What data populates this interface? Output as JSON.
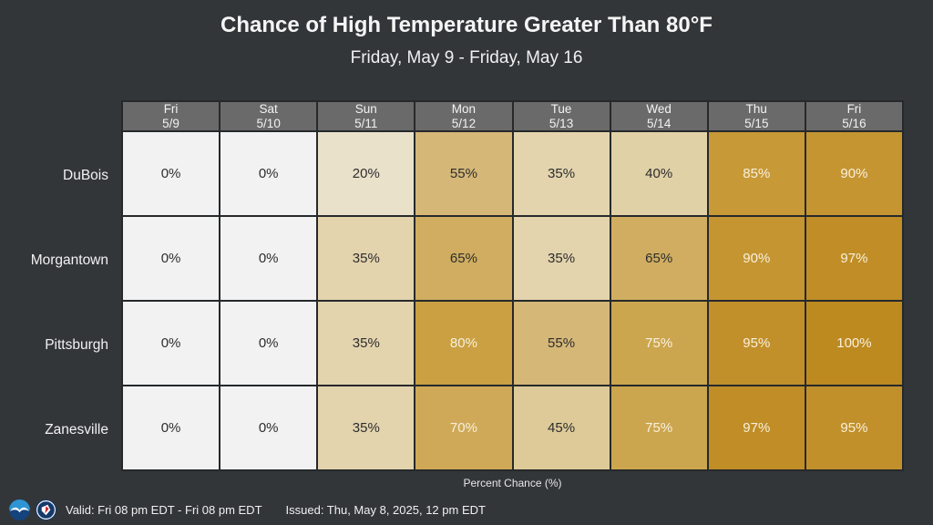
{
  "chart_data": {
    "type": "heatmap",
    "title": "Chance of High Temperature Greater Than 80°F",
    "subtitle": "Friday, May 9 - Friday, May 16",
    "columns": [
      "Fri 5/9",
      "Sat 5/10",
      "Sun 5/11",
      "Mon 5/12",
      "Tue 5/13",
      "Wed 5/14",
      "Thu 5/15",
      "Fri 5/16"
    ],
    "rows": [
      "DuBois",
      "Morgantown",
      "Pittsburgh",
      "Zanesville"
    ],
    "values_percent": [
      [
        0,
        0,
        20,
        55,
        35,
        40,
        85,
        90
      ],
      [
        0,
        0,
        35,
        65,
        35,
        65,
        90,
        97
      ],
      [
        0,
        0,
        35,
        80,
        55,
        75,
        95,
        100
      ],
      [
        0,
        0,
        35,
        70,
        45,
        75,
        97,
        95
      ]
    ],
    "value_suffix": "%",
    "unit_label": "Percent Chance (%)",
    "value_range": [
      0,
      100
    ],
    "legend_position": "none",
    "grid": true
  },
  "footer": {
    "valid_text": "Valid: Fri 08 pm EDT - Fri 08 pm EDT",
    "issued_text": "Issued: Thu, May 8, 2025, 12 pm EDT"
  },
  "colors": {
    "background": "#333639",
    "grid_line": "#26292b",
    "header_bg": "#6a6a6a",
    "header_text": "#f2f2f2",
    "cell_text_dark": "#2d2d2d",
    "cell_text_light": "#f8f0dc",
    "light_text_threshold": 70,
    "scale": [
      {
        "value": 0,
        "bg": "#f2f2f2"
      },
      {
        "value": 20,
        "bg": "#eae1ca"
      },
      {
        "value": 35,
        "bg": "#e3d4ae"
      },
      {
        "value": 40,
        "bg": "#e1d1a7"
      },
      {
        "value": 45,
        "bg": "#ddca98"
      },
      {
        "value": 55,
        "bg": "#d5b778"
      },
      {
        "value": 65,
        "bg": "#d0ad60"
      },
      {
        "value": 70,
        "bg": "#cfa957"
      },
      {
        "value": 75,
        "bg": "#cca64e"
      },
      {
        "value": 80,
        "bg": "#caa043"
      },
      {
        "value": 85,
        "bg": "#c79937"
      },
      {
        "value": 90,
        "bg": "#c59532"
      },
      {
        "value": 95,
        "bg": "#c2902b"
      },
      {
        "value": 97,
        "bg": "#c08d27"
      },
      {
        "value": 100,
        "bg": "#bd8a20"
      }
    ]
  },
  "icons": [
    {
      "name": "noaa-logo",
      "colors": [
        "#2d95d3",
        "#15437c",
        "#ffffff"
      ]
    },
    {
      "name": "nws-logo",
      "colors": [
        "#14396b",
        "#cf2030",
        "#ffffff"
      ]
    }
  ]
}
